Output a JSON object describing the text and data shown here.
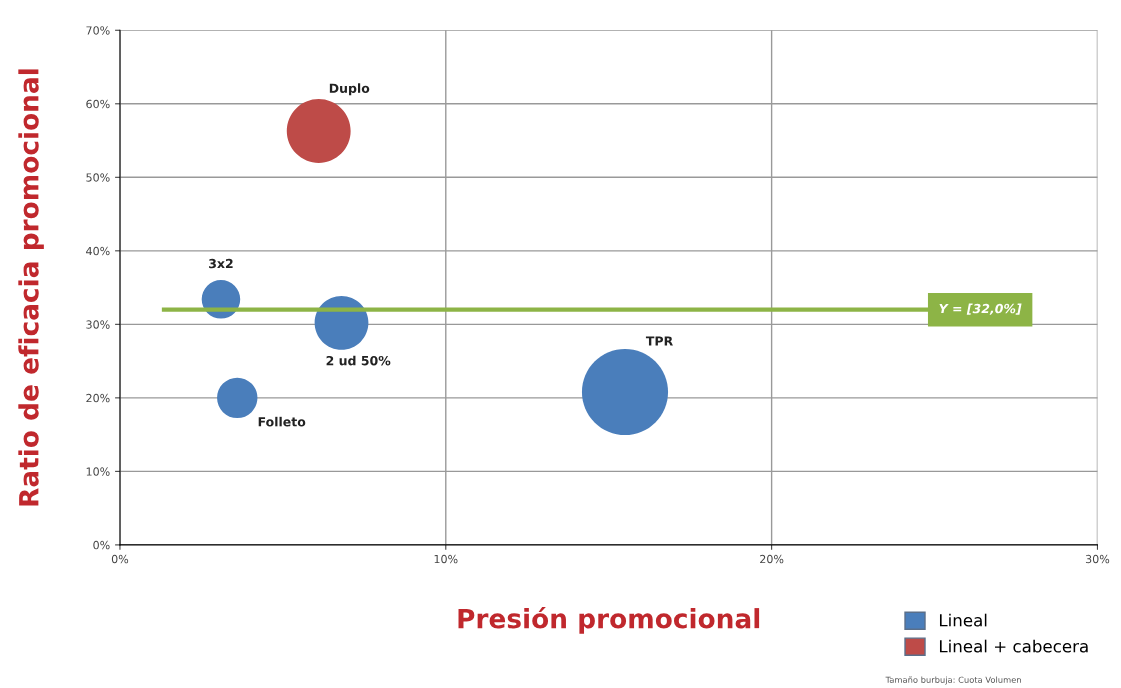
{
  "chart_data": {
    "type": "bubble",
    "xlabel": "Presión promocional",
    "ylabel": "Ratio de eficacia promocional",
    "series": [
      {
        "name": "Lineal",
        "color": "#4a7ebb",
        "x": [
          3.1,
          6.8,
          3.6,
          15.5
        ],
        "values": [
          33.4,
          30.2,
          20.0,
          20.8
        ],
        "sizes": [
          0.2,
          0.39,
          0.22,
          1
        ]
      },
      {
        "name": "Lineal + cabecera",
        "color": "#be4b48",
        "x": [
          6.1
        ],
        "values": [
          56.3
        ],
        "sizes": [
          0.55
        ]
      }
    ],
    "xlim": [
      0,
      30
    ],
    "xticks": [
      {
        "value": 0,
        "label": "0%"
      },
      {
        "value": 10,
        "label": "10%"
      },
      {
        "value": 20,
        "label": "20%"
      },
      {
        "value": 30,
        "label": "30%"
      }
    ],
    "ylim": [
      0,
      70
    ],
    "yticks": [
      {
        "value": 0,
        "label": "0%"
      },
      {
        "value": 10,
        "label": "10%"
      },
      {
        "value": 20,
        "label": "20%"
      },
      {
        "value": 30,
        "label": "30%"
      },
      {
        "value": 40,
        "label": "40%"
      },
      {
        "value": 50,
        "label": "50%"
      },
      {
        "value": 60,
        "label": "60%"
      },
      {
        "value": 70,
        "label": "70%"
      }
    ],
    "ref_lines": [
      {
        "axis": "y",
        "value": 32,
        "label": "Y = [32,0%]",
        "color": "#8db446"
      }
    ],
    "annotations": [
      {
        "text": "3x2",
        "x": 3.1,
        "y": 33.4
      },
      {
        "text": "2 ud 50%",
        "x": 6.8,
        "y": 30.2
      },
      {
        "text": "Folleto",
        "x": 3.6,
        "y": 20.0
      },
      "TPR",
      {
        "text": "Duplo",
        "x": 6.1,
        "y": 56.3
      },
      "Tamaño burbuja: Cuota Volumen"
    ],
    "grid": true,
    "legend": "bottom right"
  }
}
